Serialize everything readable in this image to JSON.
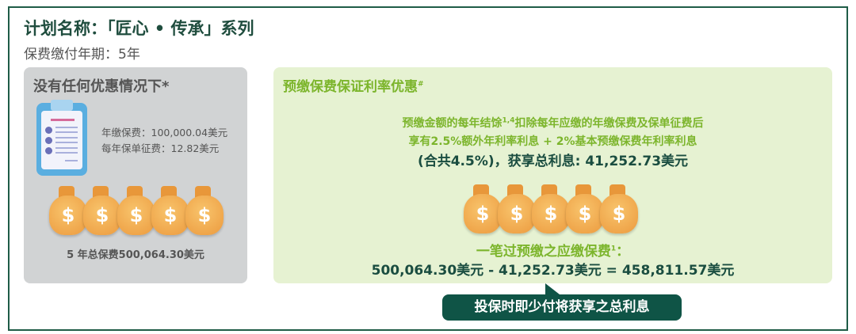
{
  "header": {
    "title": "计划名称：「匠心 • 传承」系列",
    "payment_period": "保费缴付年期：5年"
  },
  "no_discount": {
    "title": "没有任何优惠情况下*",
    "annual_premium": "年缴保费：100,000.04美元",
    "annual_levy": "每年保单征费：12.82美元",
    "total": "5 年总保费500,064.30美元",
    "icons": [
      "clipboard-icon",
      "money-bag-icon"
    ]
  },
  "prepay": {
    "title": "预缴保费保证利率优惠",
    "title_sup": "#",
    "line1_a": "预缴金额的每年结馀",
    "line1_sup": "1,4",
    "line1_b": "扣除每年应缴的年缴保费及保单征费后",
    "line2": "享有2.5%额外年利率利息 + 2%基本预缴保费年利率利息",
    "line3": "(合共4.5%)，获享总利息: 41,252.73美元",
    "lump_label": "一笔过预缴之应缴保费",
    "lump_sup": "1",
    "lump_colon": "：",
    "equation": "500,064.30美元 - 41,252.73美元 = 458,811.57美元",
    "callout": "投保时即少付将获享之总利息"
  },
  "colors": {
    "accent": "#7cb52c",
    "dark_green": "#0f5446",
    "panel_green": "#e6f2d2",
    "panel_grey": "#d1d3d4"
  },
  "bag_symbol": "$"
}
